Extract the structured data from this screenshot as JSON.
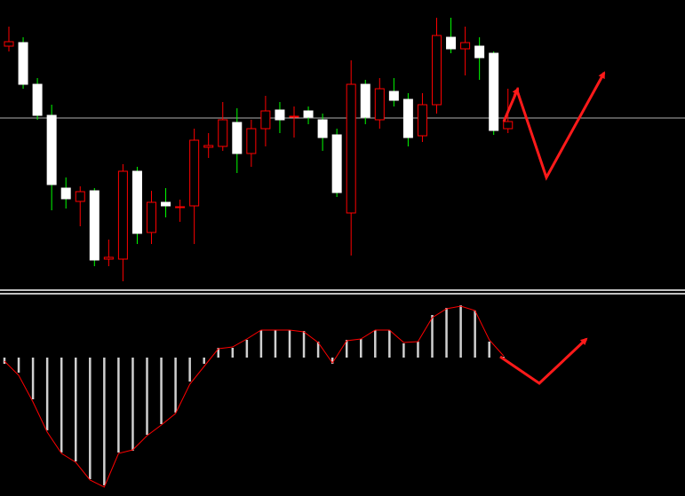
{
  "chart_data": [
    {
      "type": "candlestick",
      "ylim": [
        0,
        330
      ],
      "hline": 197,
      "up_color": "#ff0000",
      "down_color": "#ffffff",
      "down_wick_color": "#00ff00",
      "hline_color": "#b0b0b0",
      "open": [
        278,
        282,
        235,
        200,
        118,
        103,
        115,
        38,
        38,
        137,
        68,
        102,
        96,
        98,
        164,
        165,
        192,
        157,
        185,
        206,
        198,
        205,
        195,
        178,
        90,
        235,
        195,
        227,
        218,
        177,
        212,
        288,
        275,
        278,
        270,
        185
      ],
      "high": [
        300,
        288,
        242,
        212,
        130,
        120,
        118,
        60,
        145,
        142,
        115,
        118,
        105,
        185,
        180,
        215,
        208,
        195,
        222,
        215,
        210,
        210,
        202,
        185,
        262,
        240,
        242,
        242,
        225,
        225,
        310,
        310,
        300,
        288,
        272,
        230
      ],
      "low": [
        272,
        230,
        195,
        93,
        95,
        75,
        30,
        30,
        13,
        55,
        55,
        85,
        80,
        55,
        152,
        160,
        135,
        142,
        165,
        180,
        175,
        190,
        160,
        108,
        42,
        190,
        185,
        210,
        165,
        170,
        202,
        270,
        245,
        240,
        178,
        180
      ],
      "close": [
        283,
        235,
        200,
        122,
        106,
        114,
        37,
        40,
        137,
        67,
        102,
        98,
        97,
        172,
        166,
        195,
        157,
        185,
        205,
        195,
        199,
        198,
        175,
        113,
        235,
        198,
        230,
        217,
        175,
        212,
        290,
        275,
        282,
        265,
        183,
        193
      ]
    },
    {
      "type": "histogram",
      "ylim": [
        -155,
        68
      ],
      "color": "#d0d0d0",
      "signal_color": "#ff0000",
      "values": [
        -7,
        -17,
        -47,
        -82,
        -107,
        -117,
        -137,
        -144,
        -107,
        -105,
        -87,
        -75,
        -62,
        -27,
        -7,
        11,
        11,
        20,
        31,
        31,
        31,
        30,
        18,
        -7,
        20,
        21,
        31,
        31,
        16,
        18,
        48,
        56,
        59,
        53,
        18,
        1
      ],
      "signal": [
        -4,
        -20,
        -50,
        -84,
        -108,
        -118,
        -138,
        -146,
        -108,
        -104,
        -88,
        -76,
        -63,
        -30,
        -10,
        10,
        12,
        21,
        31,
        31,
        31,
        29,
        17,
        -6,
        19,
        21,
        31,
        31,
        17,
        18,
        45,
        55,
        58,
        53,
        20,
        2
      ]
    }
  ]
}
